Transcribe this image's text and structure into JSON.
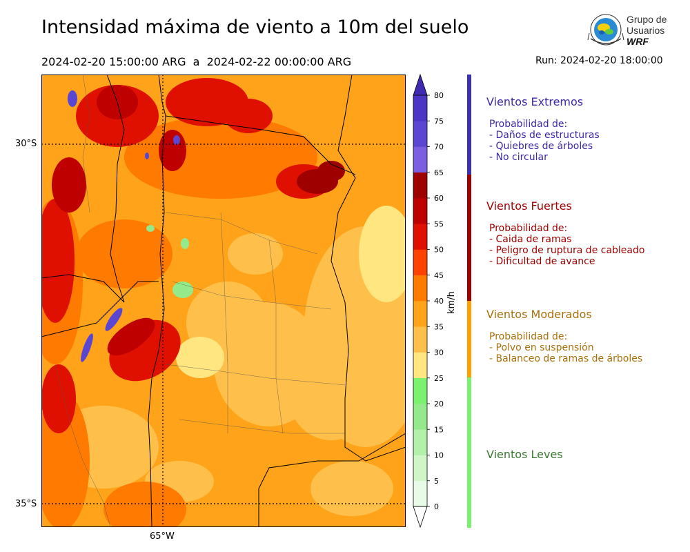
{
  "title": "Intensidad máxima de viento a 10m del suelo",
  "subtitle": "2024-02-20 15:00:00 ARG  a  2024-02-22 00:00:00 ARG",
  "run": "Run: 2024-02-20 18:00:00",
  "logo": {
    "line1": "Grupo de",
    "line2": "Usuarios",
    "line3": "WRF"
  },
  "map": {
    "lat_labels": [
      "30°S",
      "35°S"
    ],
    "lon_labels": [
      "65°W"
    ]
  },
  "colorbar": {
    "unit": "km/h",
    "levels": [
      0,
      5,
      10,
      15,
      20,
      25,
      30,
      35,
      40,
      45,
      50,
      55,
      60,
      65,
      70,
      75,
      80
    ],
    "tick_labels": [
      "0",
      "5",
      "10",
      "15",
      "20",
      "25",
      "30",
      "35",
      "40",
      "45",
      "50",
      "55",
      "60",
      "65",
      "70",
      "75",
      "80"
    ],
    "colors": [
      "#e8fbe6",
      "#cff5c9",
      "#b3f0aa",
      "#94ea8a",
      "#7cf06f",
      "#ffe680",
      "#ffc04b",
      "#ffa31a",
      "#ff7a00",
      "#ff4200",
      "#e01000",
      "#bf0000",
      "#9e0000",
      "#7b5fe0",
      "#5a46d0",
      "#4b35c4",
      "#3f2bb0"
    ]
  },
  "categories": [
    {
      "name": "Vientos Extremos",
      "color": "#3a28a8",
      "bar_color": "#3b2fb5",
      "lines": [
        "Probabilidad de:",
        "- Daños de estructuras",
        "- Quiebres de árboles",
        "- No circular"
      ]
    },
    {
      "name": "Vientos Fuertes",
      "color": "#a00000",
      "bar_color": "#a00000",
      "lines": [
        "Probabilidad de:",
        "- Caida de ramas",
        "- Peligro de ruptura de cableado",
        "- Dificultad de avance"
      ]
    },
    {
      "name": "Vientos Moderados",
      "color": "#a8700a",
      "bar_color": "#ff9f00",
      "lines": [
        "Probabilidad de:",
        "- Polvo en suspensión",
        "- Balanceo de ramas de árboles"
      ]
    },
    {
      "name": "Vientos Leves",
      "color": "#3a7a30",
      "bar_color": "#7cf06f",
      "lines": []
    }
  ]
}
